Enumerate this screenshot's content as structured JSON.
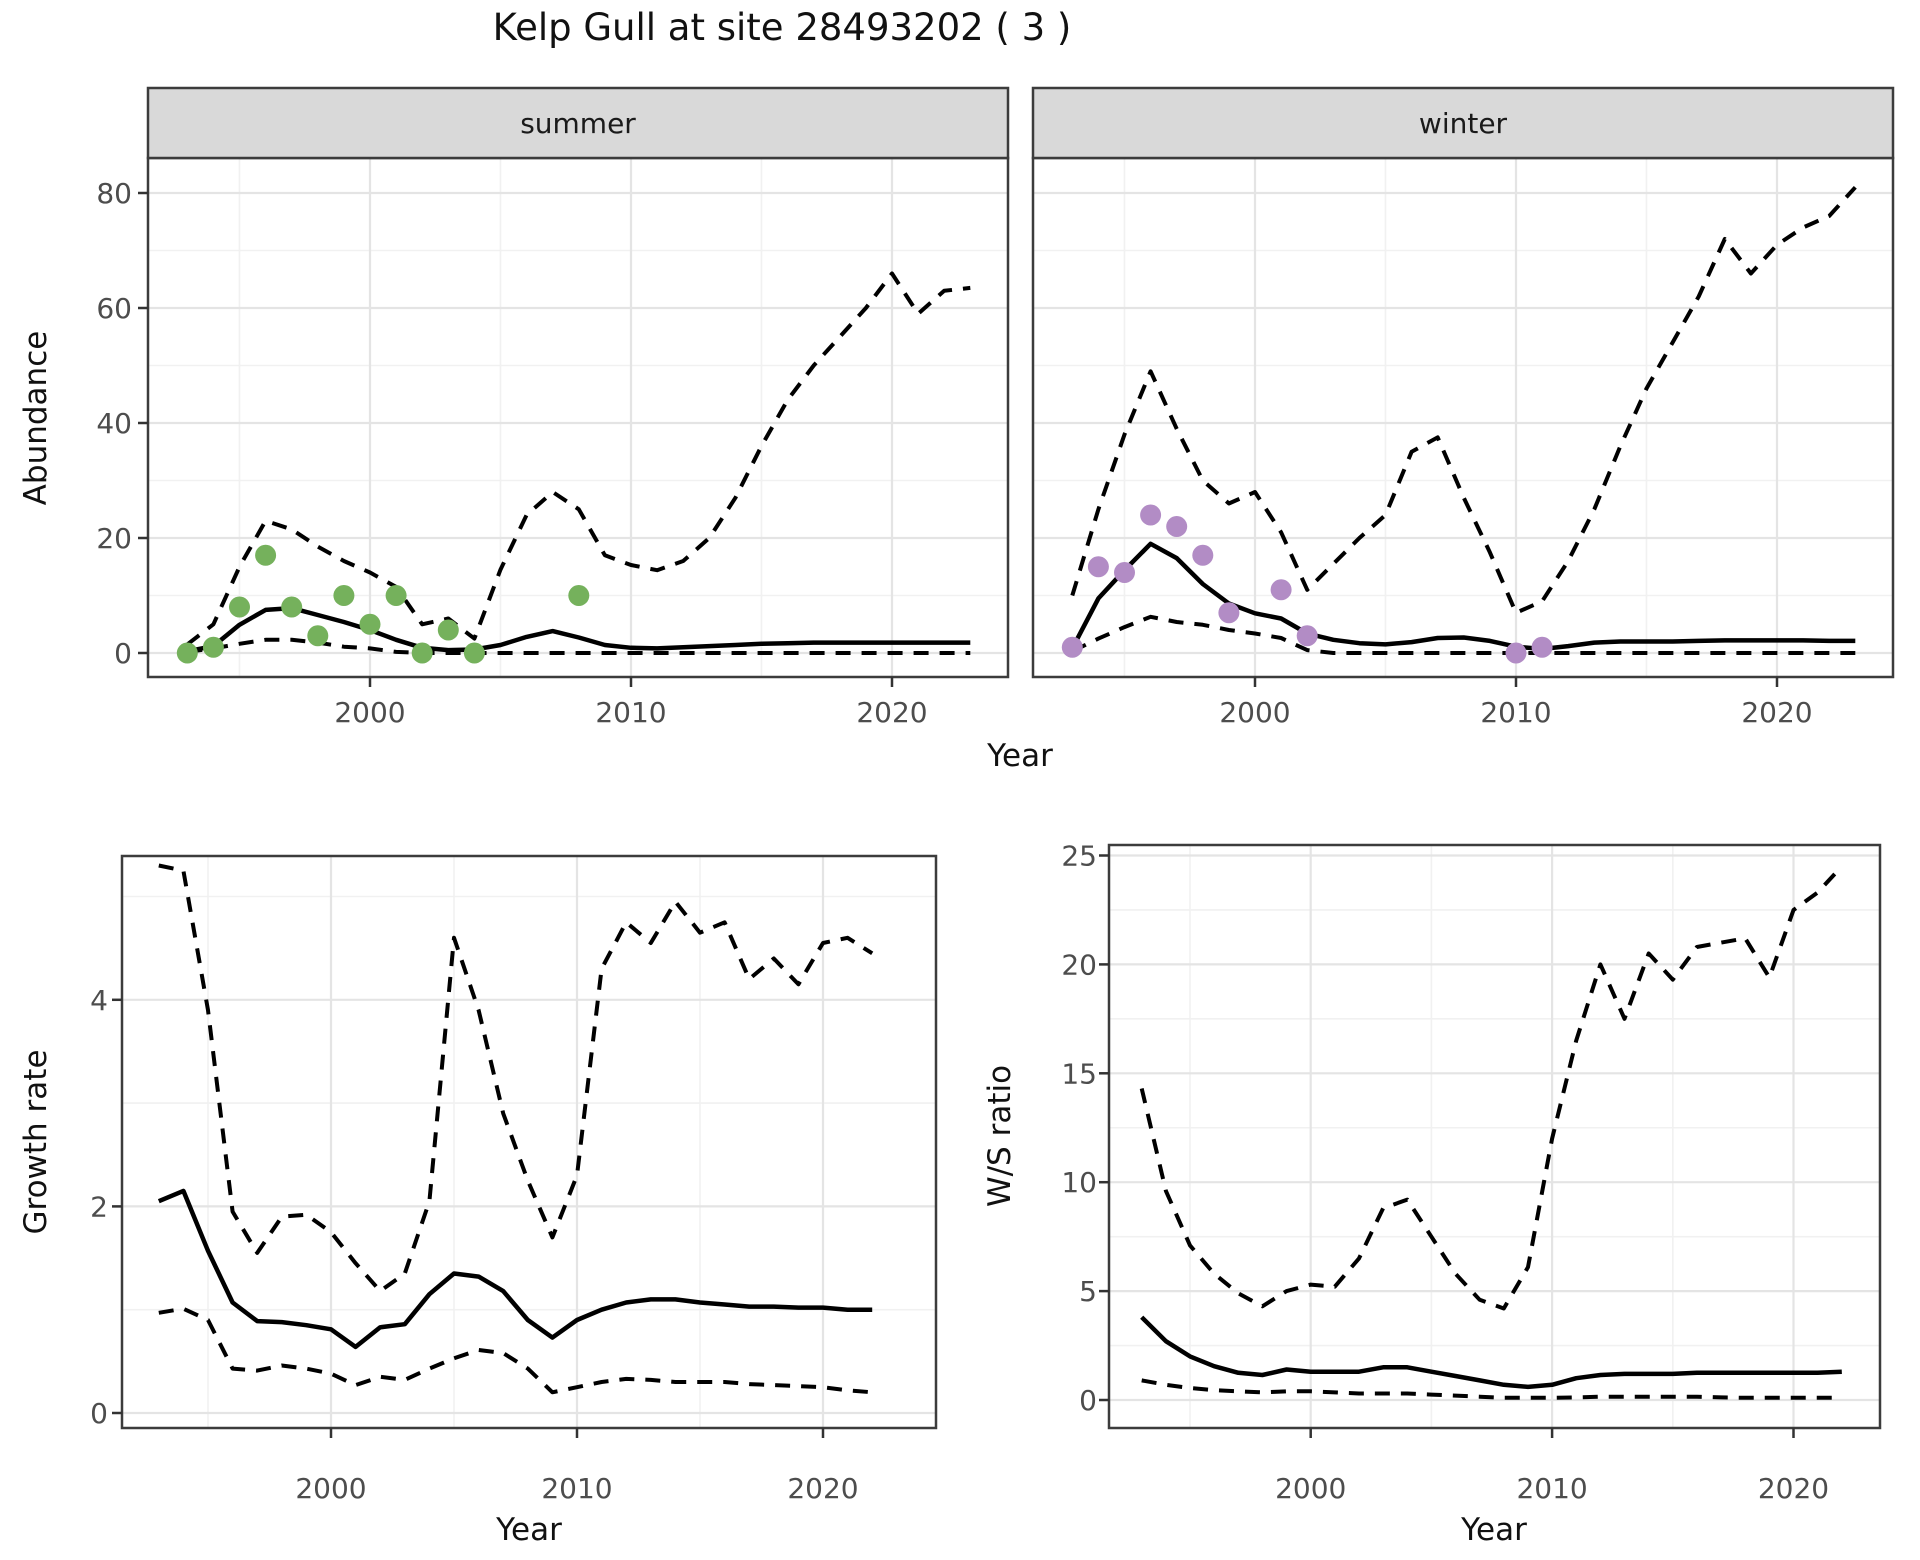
{
  "title": "Kelp Gull at site 28493202 ( 3 )",
  "axes": {
    "top_ylabel": "Abundance",
    "top_xlabel": "Year",
    "growth_ylabel": "Growth rate",
    "growth_xlabel": "Year",
    "ws_ylabel": "W/S ratio",
    "ws_xlabel": "Year"
  },
  "colors": {
    "summer_points": "#75b15c",
    "winter_points": "#b28cc5",
    "line": "#000000",
    "grid_major": "#e4e4e4",
    "grid_minor": "#f1f1f1",
    "strip_bg": "#d9d9d9",
    "panel_border": "#3c3c3c",
    "tick_mark": "#333333",
    "tick_text": "#4d4d4d"
  },
  "chart_data": [
    {
      "id": "abundance-summer",
      "type": "line",
      "facet_label": "summer",
      "xlabel": "Year",
      "ylabel": "Abundance",
      "ylim": [
        0,
        85
      ],
      "yticks": [
        0,
        20,
        40,
        60,
        80
      ],
      "yticks_minor": [
        10,
        30,
        50,
        70
      ],
      "xticks": [
        2000,
        2010,
        2020
      ],
      "xticks_minor": [
        1995,
        2005,
        2015
      ],
      "grid": true,
      "legend": "none",
      "x": [
        1993,
        1994,
        1995,
        1996,
        1997,
        1998,
        1999,
        2000,
        2001,
        2002,
        2003,
        2004,
        2005,
        2006,
        2007,
        2008,
        2009,
        2010,
        2011,
        2012,
        2013,
        2014,
        2015,
        2016,
        2017,
        2018,
        2019,
        2020,
        2021,
        2022,
        2023
      ],
      "series": [
        {
          "name": "estimate",
          "style": "solid",
          "values": [
            0.3,
            1.2,
            4.9,
            7.5,
            7.8,
            6.6,
            5.4,
            4.0,
            2.3,
            0.9,
            0.5,
            0.6,
            1.4,
            2.8,
            3.8,
            2.7,
            1.4,
            0.9,
            0.8,
            1.0,
            1.2,
            1.4,
            1.6,
            1.7,
            1.8,
            1.8,
            1.8,
            1.8,
            1.8,
            1.8,
            1.8
          ]
        },
        {
          "name": "upper-ci",
          "style": "dashed",
          "values": [
            1.5,
            5,
            15,
            23,
            21.5,
            18.5,
            16,
            14,
            11.5,
            5,
            6,
            2.5,
            14.5,
            24,
            28,
            25,
            17,
            15.3,
            14.4,
            16,
            20,
            27,
            36,
            44,
            50,
            55,
            60,
            66,
            59,
            63,
            63.5
          ]
        },
        {
          "name": "lower-ci",
          "style": "dashed",
          "values": [
            0.2,
            0.8,
            1.6,
            2.3,
            2.3,
            1.8,
            1.1,
            0.8,
            0.2,
            0,
            0,
            0,
            0,
            0,
            0,
            0,
            0,
            0,
            0,
            0,
            0,
            0,
            0,
            0,
            0,
            0,
            0,
            0,
            0,
            0,
            0
          ]
        }
      ],
      "points": {
        "name": "observed-summer",
        "color": "#75b15c",
        "x": [
          1993,
          1994,
          1995,
          1996,
          1997,
          1998,
          1999,
          2000,
          2001,
          2002,
          2003,
          2004,
          2008
        ],
        "values": [
          0,
          1,
          8,
          17,
          8,
          3,
          10,
          5,
          10,
          0,
          4,
          0,
          10
        ]
      }
    },
    {
      "id": "abundance-winter",
      "type": "line",
      "facet_label": "winter",
      "xlabel": "Year",
      "ylabel": "Abundance",
      "ylim": [
        0,
        85
      ],
      "yticks": [
        0,
        20,
        40,
        60,
        80
      ],
      "yticks_minor": [
        10,
        30,
        50,
        70
      ],
      "xticks": [
        2000,
        2010,
        2020
      ],
      "xticks_minor": [
        1995,
        2005,
        2015
      ],
      "grid": true,
      "legend": "none",
      "x": [
        1993,
        1994,
        1995,
        1996,
        1997,
        1998,
        1999,
        2000,
        2001,
        2002,
        2003,
        2004,
        2005,
        2006,
        2007,
        2008,
        2009,
        2010,
        2011,
        2012,
        2013,
        2014,
        2015,
        2016,
        2017,
        2018,
        2019,
        2020,
        2021,
        2022,
        2023
      ],
      "series": [
        {
          "name": "estimate",
          "style": "solid",
          "values": [
            0.8,
            9.5,
            14.4,
            19,
            16.5,
            12,
            8.6,
            6.9,
            6.0,
            3.4,
            2.3,
            1.7,
            1.5,
            1.9,
            2.6,
            2.7,
            2.1,
            1.1,
            0.7,
            1.2,
            1.8,
            2.0,
            2.0,
            2.0,
            2.1,
            2.2,
            2.2,
            2.2,
            2.2,
            2.1,
            2.1
          ]
        },
        {
          "name": "upper-ci",
          "style": "dashed",
          "values": [
            10,
            25,
            38,
            49,
            39,
            30,
            26,
            28,
            21,
            11,
            15.5,
            20,
            24,
            35,
            37.5,
            27,
            17.5,
            7,
            9,
            16,
            25,
            36,
            46,
            54,
            62,
            72,
            66,
            71,
            74,
            76,
            81
          ]
        },
        {
          "name": "lower-ci",
          "style": "dashed",
          "values": [
            0.3,
            2.5,
            4.5,
            6.3,
            5.4,
            4.9,
            4.0,
            3.4,
            2.6,
            0.5,
            0,
            0,
            0,
            0,
            0,
            0,
            0,
            0,
            0,
            0,
            0,
            0,
            0,
            0,
            0,
            0,
            0,
            0,
            0,
            0,
            0
          ]
        }
      ],
      "points": {
        "name": "observed-winter",
        "color": "#b28cc5",
        "x": [
          1993,
          1994,
          1995,
          1996,
          1997,
          1998,
          1999,
          2001,
          2002,
          2010,
          2011
        ],
        "values": [
          1,
          15,
          14,
          24,
          22,
          17,
          7,
          11,
          3,
          0,
          1
        ]
      }
    },
    {
      "id": "growth-rate",
      "type": "line",
      "facet_label": "",
      "xlabel": "Year",
      "ylabel": "Growth rate",
      "ylim": [
        0,
        5.5
      ],
      "yticks": [
        0,
        2,
        4
      ],
      "yticks_minor": [
        1,
        3,
        5
      ],
      "xticks": [
        2000,
        2010,
        2020
      ],
      "xticks_minor": [
        1995,
        2005,
        2015
      ],
      "grid": true,
      "legend": "none",
      "x": [
        1993,
        1994,
        1995,
        1996,
        1997,
        1998,
        1999,
        2000,
        2001,
        2002,
        2003,
        2004,
        2005,
        2006,
        2007,
        2008,
        2009,
        2010,
        2011,
        2012,
        2013,
        2014,
        2015,
        2016,
        2017,
        2018,
        2019,
        2020,
        2021,
        2022
      ],
      "series": [
        {
          "name": "estimate",
          "style": "solid",
          "values": [
            2.05,
            2.15,
            1.57,
            1.07,
            0.89,
            0.88,
            0.85,
            0.81,
            0.64,
            0.83,
            0.86,
            1.15,
            1.35,
            1.32,
            1.18,
            0.9,
            0.73,
            0.9,
            1.0,
            1.07,
            1.1,
            1.1,
            1.07,
            1.05,
            1.03,
            1.03,
            1.02,
            1.02,
            1.0,
            1.0
          ]
        },
        {
          "name": "upper-ci",
          "style": "dashed",
          "values": [
            5.3,
            5.25,
            3.9,
            1.95,
            1.55,
            1.9,
            1.92,
            1.75,
            1.45,
            1.18,
            1.35,
            2.05,
            4.6,
            3.9,
            2.9,
            2.25,
            1.7,
            2.3,
            4.3,
            4.75,
            4.55,
            4.95,
            4.65,
            4.75,
            4.2,
            4.4,
            4.15,
            4.55,
            4.6,
            4.45
          ]
        },
        {
          "name": "lower-ci",
          "style": "dashed",
          "values": [
            0.97,
            1.01,
            0.9,
            0.43,
            0.41,
            0.46,
            0.43,
            0.38,
            0.27,
            0.35,
            0.32,
            0.43,
            0.53,
            0.61,
            0.58,
            0.43,
            0.2,
            0.25,
            0.3,
            0.33,
            0.32,
            0.3,
            0.3,
            0.3,
            0.28,
            0.27,
            0.26,
            0.25,
            0.22,
            0.2
          ]
        }
      ]
    },
    {
      "id": "ws-ratio",
      "type": "line",
      "facet_label": "",
      "xlabel": "Year",
      "ylabel": "W/S ratio",
      "ylim": [
        0,
        26
      ],
      "yticks": [
        0,
        5,
        10,
        15,
        20,
        25
      ],
      "yticks_minor": [
        2.5,
        7.5,
        12.5,
        17.5,
        22.5
      ],
      "xticks": [
        2000,
        2010,
        2020
      ],
      "xticks_minor": [
        1995,
        2005,
        2015
      ],
      "grid": true,
      "legend": "none",
      "x": [
        1993,
        1994,
        1995,
        1996,
        1997,
        1998,
        1999,
        2000,
        2001,
        2002,
        2003,
        2004,
        2005,
        2006,
        2007,
        2008,
        2009,
        2010,
        2011,
        2012,
        2013,
        2014,
        2015,
        2016,
        2017,
        2018,
        2019,
        2020,
        2021,
        2022
      ],
      "series": [
        {
          "name": "estimate",
          "style": "solid",
          "values": [
            3.8,
            2.7,
            2.0,
            1.55,
            1.25,
            1.15,
            1.4,
            1.3,
            1.3,
            1.3,
            1.5,
            1.5,
            1.3,
            1.1,
            0.9,
            0.7,
            0.6,
            0.7,
            1.0,
            1.15,
            1.2,
            1.2,
            1.2,
            1.25,
            1.25,
            1.25,
            1.25,
            1.25,
            1.25,
            1.3
          ]
        },
        {
          "name": "upper-ci",
          "style": "dashed",
          "values": [
            14.3,
            9.6,
            7.1,
            5.8,
            4.9,
            4.3,
            5.0,
            5.3,
            5.2,
            6.5,
            8.8,
            9.2,
            7.5,
            5.8,
            4.6,
            4.2,
            6.1,
            12.0,
            16.5,
            20.0,
            17.5,
            20.5,
            19.3,
            20.8,
            21.0,
            21.2,
            19.4,
            22.5,
            23.3,
            24.5
          ]
        },
        {
          "name": "lower-ci",
          "style": "dashed",
          "values": [
            0.9,
            0.7,
            0.55,
            0.45,
            0.4,
            0.35,
            0.4,
            0.4,
            0.35,
            0.3,
            0.3,
            0.3,
            0.25,
            0.2,
            0.15,
            0.1,
            0.1,
            0.1,
            0.12,
            0.15,
            0.15,
            0.15,
            0.15,
            0.15,
            0.12,
            0.1,
            0.1,
            0.1,
            0.1,
            0.1
          ]
        }
      ]
    }
  ]
}
